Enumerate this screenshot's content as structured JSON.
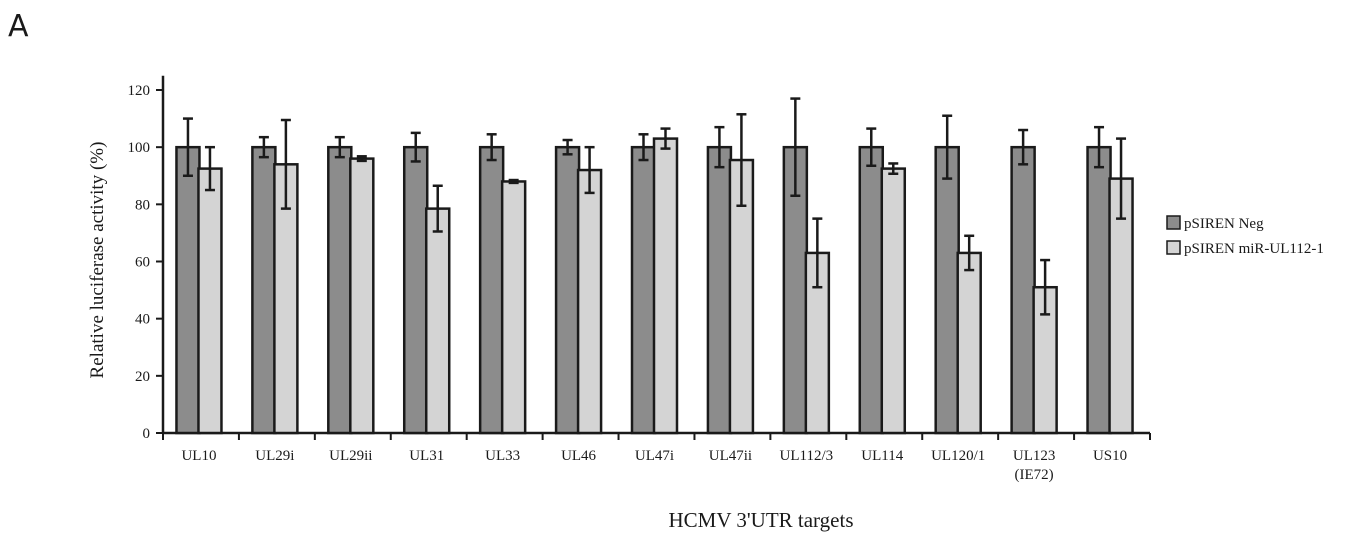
{
  "panel_label": "A",
  "chart_data": {
    "type": "bar",
    "xlabel": "HCMV 3'UTR targets",
    "ylabel": "Relative luciferase activity (%)",
    "ylim": [
      0,
      125
    ],
    "yticks": [
      0,
      20,
      40,
      60,
      80,
      100,
      120
    ],
    "categories": [
      [
        "UL10"
      ],
      [
        "UL29i"
      ],
      [
        "UL29ii"
      ],
      [
        "UL31"
      ],
      [
        "UL33"
      ],
      [
        "UL46"
      ],
      [
        "UL47i"
      ],
      [
        "UL47ii"
      ],
      [
        "UL112/3"
      ],
      [
        "UL114"
      ],
      [
        "UL120/1"
      ],
      [
        "UL123",
        "(IE72)"
      ],
      [
        "US10"
      ]
    ],
    "series": [
      {
        "name": "pSIREN Neg",
        "color": "#8c8c8c",
        "values": [
          100,
          100,
          100,
          100,
          100,
          100,
          100,
          100,
          100,
          100,
          100,
          100,
          100
        ],
        "errors": [
          10,
          3.5,
          3.5,
          5,
          4.5,
          2.5,
          4.5,
          7,
          17,
          6.5,
          11,
          6,
          7
        ]
      },
      {
        "name": "pSIREN miR-UL112-1",
        "color": "#d4d4d4",
        "values": [
          92.5,
          94,
          96,
          78.5,
          88,
          92,
          103,
          95.5,
          63,
          92.5,
          63,
          51,
          89
        ],
        "errors": [
          7.5,
          15.5,
          0.8,
          8,
          0.5,
          8,
          3.5,
          16,
          12,
          1.8,
          6,
          9.5,
          14
        ]
      }
    ],
    "legend_position": "right",
    "grid": false
  }
}
